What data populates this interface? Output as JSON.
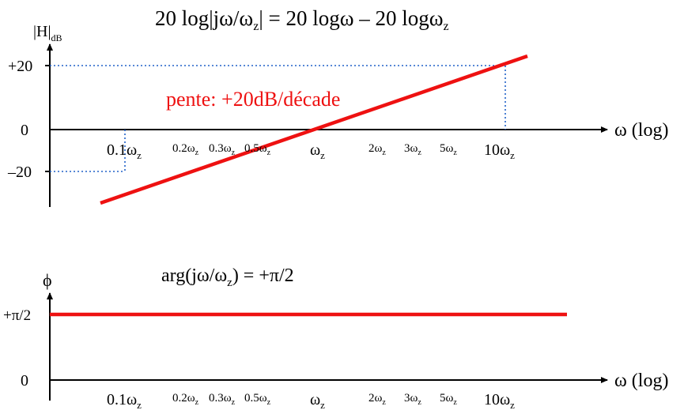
{
  "top_plot": {
    "formula_main": "20 log|jω/ω",
    "formula_sub1": "z",
    "formula_mid": "| = 20 logω – 20 logω",
    "formula_sub2": "z",
    "ylabel_main": "|H|",
    "ylabel_sub": "dB",
    "y_ticks": [
      "+20",
      "0",
      "–20"
    ],
    "xlabel": "ω (log)",
    "slope_label": "pente: +20dB/décade",
    "line_color": "#ee1111",
    "guide_color": "#2060c8"
  },
  "bottom_plot": {
    "formula_main": "arg(jω/ω",
    "formula_sub": "z",
    "formula_end": ") = +π/2",
    "ylabel": "ϕ",
    "y_ticks": [
      "+π/2",
      "0"
    ],
    "xlabel": "ω (log)"
  },
  "x_ticks": [
    {
      "coef": "0.1ω",
      "sub": "z"
    },
    {
      "coef": "0.2ω",
      "sub": "z"
    },
    {
      "coef": "0.3ω",
      "sub": "z"
    },
    {
      "coef": "0.5ω",
      "sub": "z"
    },
    {
      "coef": "ω",
      "sub": "z"
    },
    {
      "coef": "2ω",
      "sub": "z"
    },
    {
      "coef": "3ω",
      "sub": "z"
    },
    {
      "coef": "5ω",
      "sub": "z"
    },
    {
      "coef": "10ω",
      "sub": "z"
    }
  ]
}
